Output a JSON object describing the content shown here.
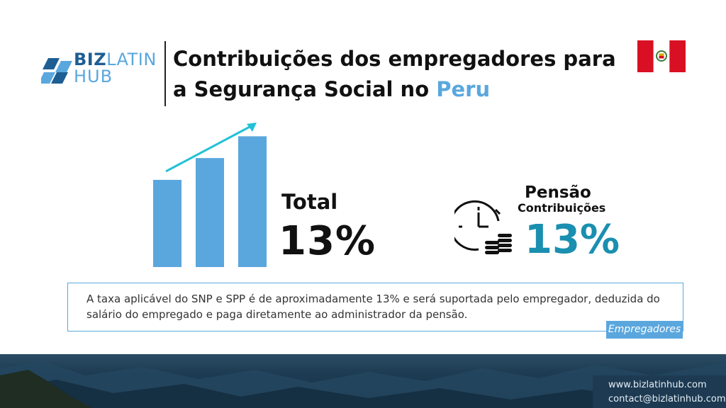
{
  "brand": {
    "line1_bold": "BIZ",
    "line1_light": "LATIN",
    "line2": "HUB"
  },
  "title": {
    "line1": "Contribuições dos empregadores para",
    "line2_prefix": "a Segurança Social no ",
    "line2_highlight": "Peru"
  },
  "chart_data": {
    "type": "bar",
    "categories": [
      "",
      "",
      ""
    ],
    "values": [
      4,
      5,
      6
    ],
    "ylim": [
      0,
      6.5
    ],
    "colors": {
      "bars": "#5aa7de",
      "arrow": "#22c1d6"
    }
  },
  "total": {
    "label": "Total",
    "value": "13%"
  },
  "pension": {
    "title": "Pensão",
    "subtitle": "Contribuições",
    "value": "13%"
  },
  "description": {
    "text": "A taxa aplicável do SNP e SPP é de aproximadamente 13% e será suportada pelo empregador, deduzida do salário do empregado e paga diretamente ao administrador da pensão.",
    "tag": "Empregadores"
  },
  "contact": {
    "website": "www.bizlatinhub.com",
    "email": "contact@bizlatinhub.com"
  },
  "colors": {
    "accent": "#5aa7de",
    "teal": "#1a8fb0",
    "brand_dark": "#1e5e93",
    "flag_red": "#d91023"
  },
  "icons": [
    "bizlatinhub-logo-icon",
    "peru-flag-icon",
    "clock-icon",
    "coins-icon"
  ]
}
